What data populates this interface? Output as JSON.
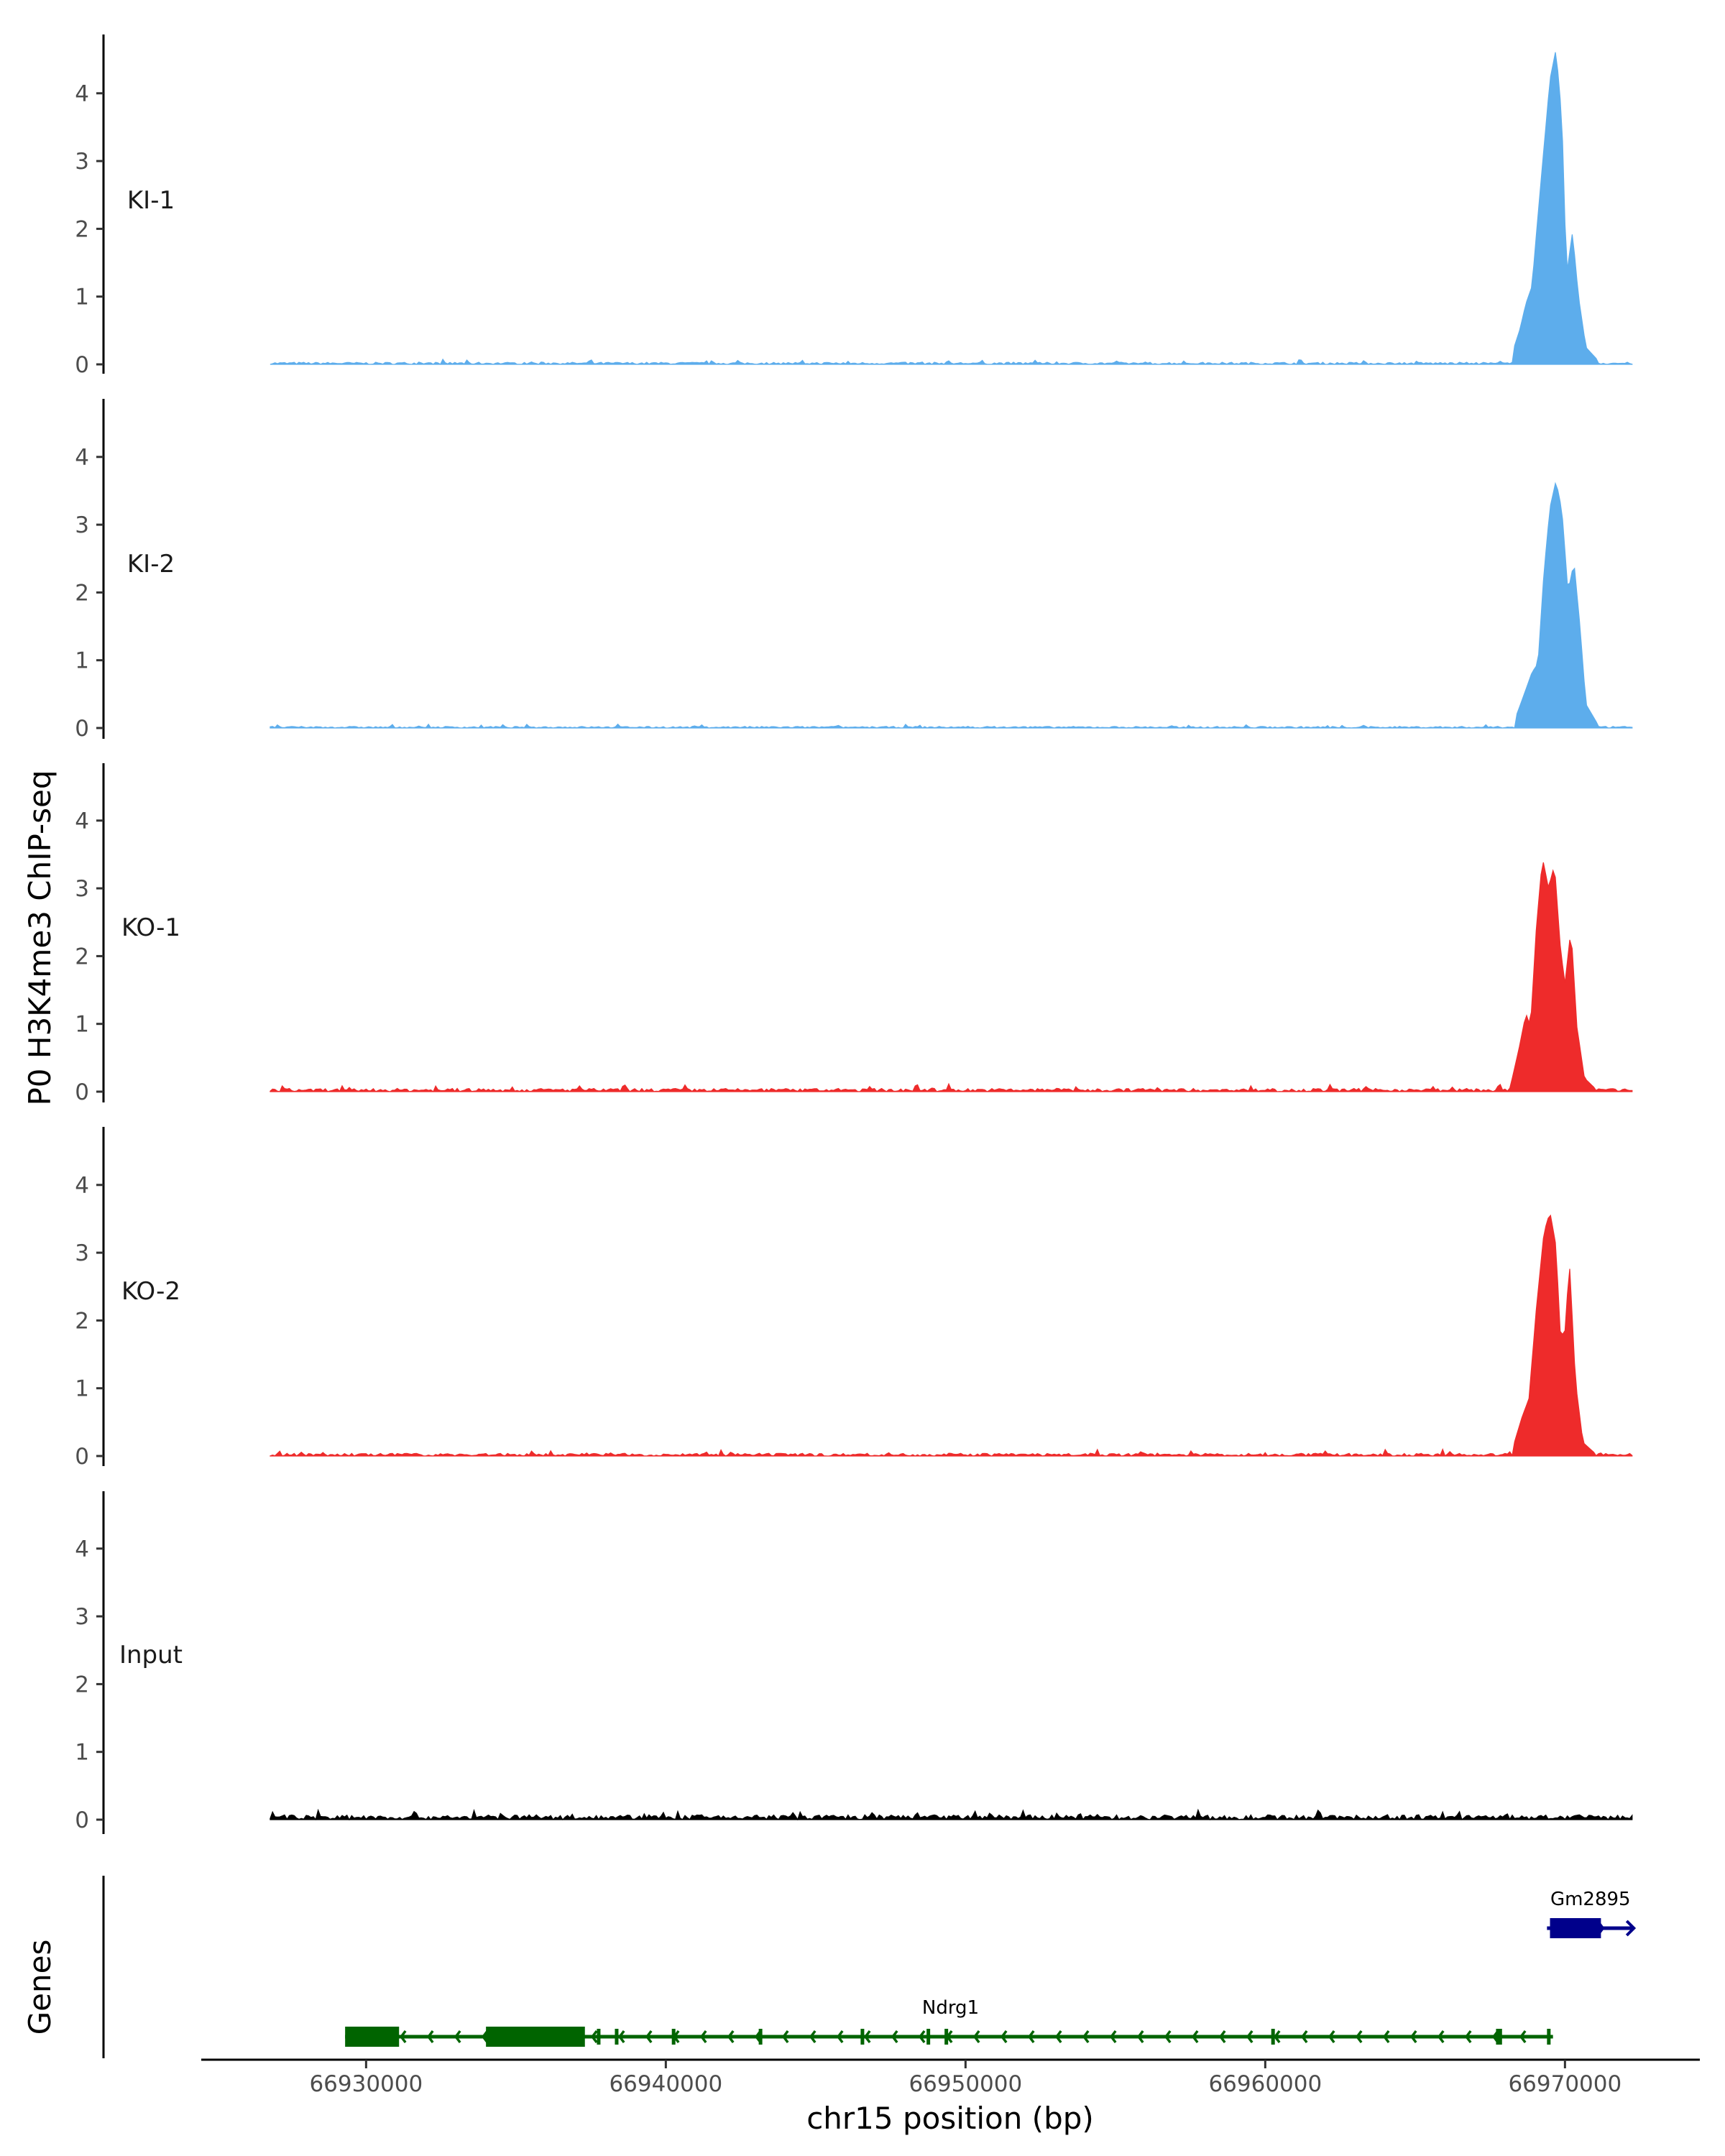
{
  "chart_data": {
    "type": "area",
    "ylabel": "P0 H3K4me3 ChIP-seq",
    "xlabel": "chr15 position (bp)",
    "genes_label": "Genes",
    "x_range": [
      66924500,
      66974500
    ],
    "data_x_range": [
      66926800,
      66972300
    ],
    "ylim": [
      0,
      4.8
    ],
    "y_ticks": [
      0,
      1,
      2,
      3,
      4
    ],
    "y_tick_labels": [
      "0",
      "1",
      "2",
      "3",
      "4"
    ],
    "x_ticks": [
      66930000,
      66940000,
      66950000,
      66960000,
      66970000
    ],
    "x_tick_labels": [
      "66930000",
      "66940000",
      "66950000",
      "66960000",
      "66970000"
    ],
    "grid": false,
    "tracks": [
      {
        "name": "KI-1",
        "color": "#5DADEC",
        "baseline": 0.02,
        "peaks": [
          {
            "pos": 66968250,
            "height": 0.18
          },
          {
            "pos": 66968500,
            "height": 0.52
          },
          {
            "pos": 66968700,
            "height": 0.9
          },
          {
            "pos": 66968900,
            "height": 1.15
          },
          {
            "pos": 66969100,
            "height": 2.2
          },
          {
            "pos": 66969300,
            "height": 3.2
          },
          {
            "pos": 66969500,
            "height": 4.2
          },
          {
            "pos": 66969700,
            "height": 4.65
          },
          {
            "pos": 66969900,
            "height": 3.6
          },
          {
            "pos": 66970050,
            "height": 1.3
          },
          {
            "pos": 66970250,
            "height": 1.95
          },
          {
            "pos": 66970450,
            "height": 1.0
          },
          {
            "pos": 66970700,
            "height": 0.25
          },
          {
            "pos": 66971100,
            "height": 0.06
          }
        ]
      },
      {
        "name": "KI-2",
        "color": "#5DADEC",
        "baseline": 0.015,
        "peaks": [
          {
            "pos": 66968350,
            "height": 0.15
          },
          {
            "pos": 66968600,
            "height": 0.45
          },
          {
            "pos": 66968900,
            "height": 0.82
          },
          {
            "pos": 66969100,
            "height": 0.95
          },
          {
            "pos": 66969300,
            "height": 2.3
          },
          {
            "pos": 66969500,
            "height": 3.25
          },
          {
            "pos": 66969700,
            "height": 3.65
          },
          {
            "pos": 66969900,
            "height": 3.2
          },
          {
            "pos": 66970100,
            "height": 2.0
          },
          {
            "pos": 66970300,
            "height": 2.45
          },
          {
            "pos": 66970500,
            "height": 1.5
          },
          {
            "pos": 66970700,
            "height": 0.35
          },
          {
            "pos": 66971100,
            "height": 0.05
          }
        ]
      },
      {
        "name": "KO-1",
        "color": "#EE2B2B",
        "baseline": 0.03,
        "peaks": [
          {
            "pos": 66968200,
            "height": 0.12
          },
          {
            "pos": 66968450,
            "height": 0.6
          },
          {
            "pos": 66968700,
            "height": 1.15
          },
          {
            "pos": 66968850,
            "height": 0.95
          },
          {
            "pos": 66969050,
            "height": 2.45
          },
          {
            "pos": 66969250,
            "height": 3.45
          },
          {
            "pos": 66969450,
            "height": 3.0
          },
          {
            "pos": 66969650,
            "height": 3.35
          },
          {
            "pos": 66969850,
            "height": 2.1
          },
          {
            "pos": 66970000,
            "height": 1.6
          },
          {
            "pos": 66970200,
            "height": 2.4
          },
          {
            "pos": 66970400,
            "height": 0.95
          },
          {
            "pos": 66970650,
            "height": 0.2
          },
          {
            "pos": 66971000,
            "height": 0.05
          }
        ]
      },
      {
        "name": "KO-2",
        "color": "#EE2B2B",
        "baseline": 0.025,
        "peaks": [
          {
            "pos": 66968300,
            "height": 0.18
          },
          {
            "pos": 66968550,
            "height": 0.55
          },
          {
            "pos": 66968800,
            "height": 0.85
          },
          {
            "pos": 66969050,
            "height": 2.2
          },
          {
            "pos": 66969300,
            "height": 3.3
          },
          {
            "pos": 66969500,
            "height": 3.6
          },
          {
            "pos": 66969700,
            "height": 3.1
          },
          {
            "pos": 66969850,
            "height": 1.75
          },
          {
            "pos": 66970000,
            "height": 1.85
          },
          {
            "pos": 66970150,
            "height": 2.85
          },
          {
            "pos": 66970350,
            "height": 1.1
          },
          {
            "pos": 66970600,
            "height": 0.2
          },
          {
            "pos": 66971000,
            "height": 0.04
          }
        ]
      },
      {
        "name": "Input",
        "color": "#000000",
        "baseline": 0.045,
        "peaks": []
      }
    ],
    "genes": [
      {
        "name": "Gm2895",
        "color": "#00008B",
        "strand": "+",
        "start": 66969400,
        "end": 66972300,
        "exons": [
          [
            66969500,
            66971200
          ]
        ]
      },
      {
        "name": "Ndrg1",
        "color": "#006400",
        "strand": "-",
        "start": 66929300,
        "end": 66969600,
        "exons": [
          [
            66929300,
            66931100
          ],
          [
            66934000,
            66937300
          ],
          [
            66937700,
            66937800
          ],
          [
            66938300,
            66938400
          ],
          [
            66940200,
            66940300
          ],
          [
            66943100,
            66943200
          ],
          [
            66946500,
            66946600
          ],
          [
            66948700,
            66948800
          ],
          [
            66949300,
            66949400
          ],
          [
            66960200,
            66960300
          ],
          [
            66967700,
            66967900
          ],
          [
            66969400,
            66969500
          ]
        ]
      }
    ]
  }
}
